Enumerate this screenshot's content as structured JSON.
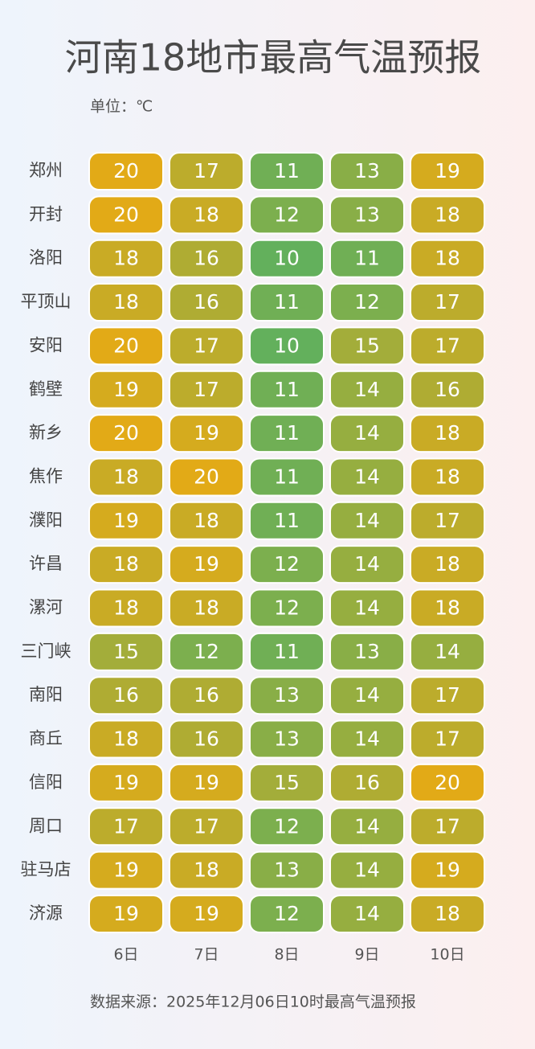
{
  "chart_data": {
    "type": "heatmap",
    "title": "河南18地市最高气温预报",
    "unit": "单位：℃",
    "source": "数据来源：2025年12月06日10时最高气温预报",
    "rows": [
      "郑州",
      "开封",
      "洛阳",
      "平顶山",
      "安阳",
      "鹤壁",
      "新乡",
      "焦作",
      "濮阳",
      "许昌",
      "漯河",
      "三门峡",
      "南阳",
      "商丘",
      "信阳",
      "周口",
      "驻马店",
      "济源"
    ],
    "columns": [
      "6日",
      "7日",
      "8日",
      "9日",
      "10日"
    ],
    "values": [
      [
        20,
        17,
        11,
        13,
        19
      ],
      [
        20,
        18,
        12,
        13,
        18
      ],
      [
        18,
        16,
        10,
        11,
        18
      ],
      [
        18,
        16,
        11,
        12,
        17
      ],
      [
        20,
        17,
        10,
        15,
        17
      ],
      [
        19,
        17,
        11,
        14,
        16
      ],
      [
        20,
        19,
        11,
        14,
        18
      ],
      [
        18,
        20,
        11,
        14,
        18
      ],
      [
        19,
        18,
        11,
        14,
        17
      ],
      [
        18,
        19,
        12,
        14,
        18
      ],
      [
        18,
        18,
        12,
        14,
        18
      ],
      [
        15,
        12,
        11,
        13,
        14
      ],
      [
        16,
        16,
        13,
        14,
        17
      ],
      [
        18,
        16,
        13,
        14,
        17
      ],
      [
        19,
        19,
        15,
        16,
        20
      ],
      [
        17,
        17,
        12,
        14,
        17
      ],
      [
        19,
        18,
        13,
        14,
        19
      ],
      [
        19,
        19,
        12,
        14,
        18
      ]
    ],
    "colorlim": [
      10,
      20
    ],
    "colors": [
      "#63b05c",
      "#e2aa17"
    ]
  }
}
